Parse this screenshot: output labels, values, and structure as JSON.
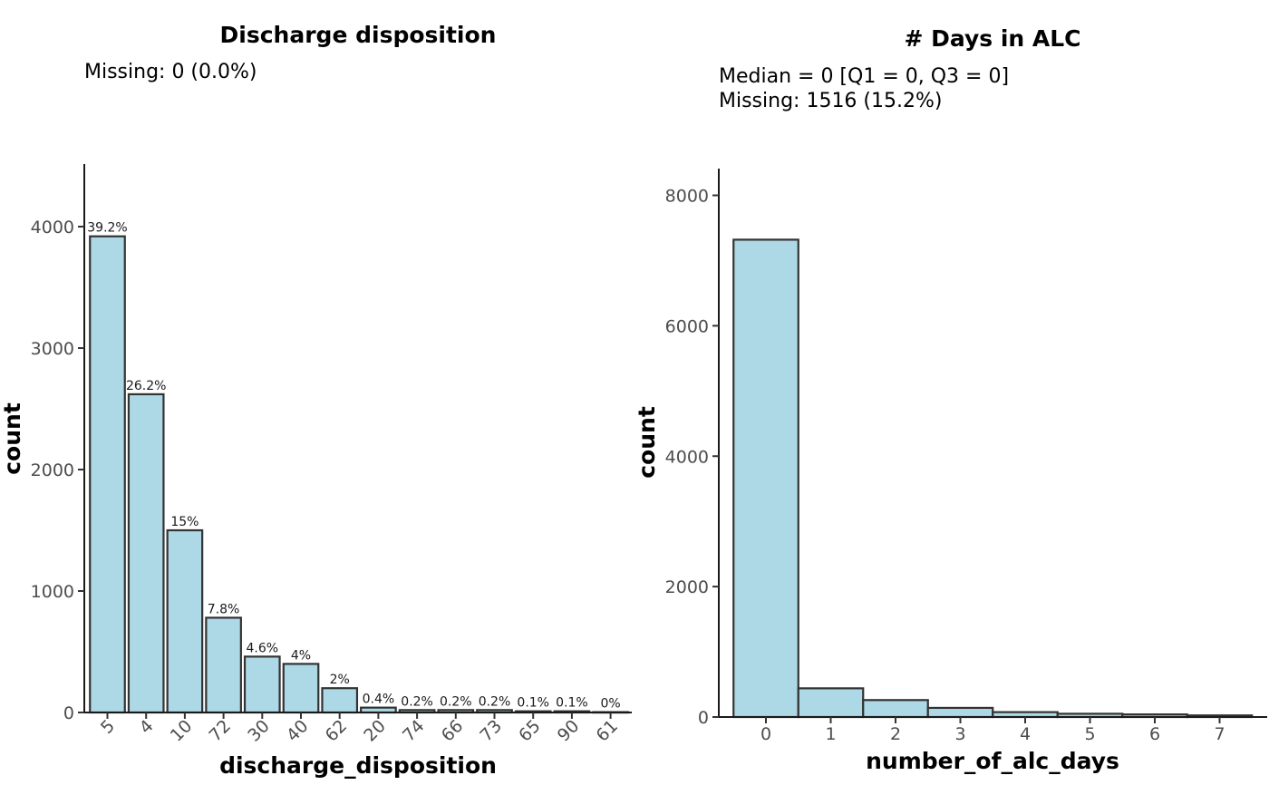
{
  "chart_data": [
    {
      "type": "bar",
      "title": "Discharge disposition",
      "subtitle_lines": [
        "Missing: 0 (0.0%)"
      ],
      "xlabel": "discharge_disposition",
      "ylabel": "count",
      "categories": [
        "5",
        "4",
        "10",
        "72",
        "30",
        "40",
        "62",
        "20",
        "74",
        "66",
        "73",
        "65",
        "90",
        "61"
      ],
      "values": [
        3920,
        2620,
        1500,
        780,
        460,
        400,
        200,
        40,
        20,
        20,
        20,
        10,
        10,
        3
      ],
      "data_labels": [
        "39.2%",
        "26.2%",
        "15%",
        "7.8%",
        "4.6%",
        "4%",
        "2%",
        "0.4%",
        "0.2%",
        "0.2%",
        "0.2%",
        "0.1%",
        "0.1%",
        "0%"
      ],
      "yticks": [
        0,
        1000,
        2000,
        3000,
        4000
      ],
      "ylim": [
        0,
        4500
      ],
      "grid": false,
      "bar_fill": "#add8e6",
      "bar_stroke": "#333333"
    },
    {
      "type": "bar",
      "title": "# Days in ALC",
      "subtitle_lines": [
        "Median = 0 [Q1 = 0, Q3 = 0]",
        "Missing: 1516 (15.2%)"
      ],
      "xlabel": "number_of_alc_days",
      "ylabel": "count",
      "categories": [
        "0",
        "1",
        "2",
        "3",
        "4",
        "5",
        "6",
        "7"
      ],
      "values": [
        7320,
        440,
        260,
        140,
        75,
        50,
        40,
        25
      ],
      "yticks": [
        0,
        2000,
        4000,
        6000,
        8000
      ],
      "ylim": [
        0,
        8400
      ],
      "grid": false,
      "bar_fill": "#add8e6",
      "bar_stroke": "#333333"
    }
  ]
}
